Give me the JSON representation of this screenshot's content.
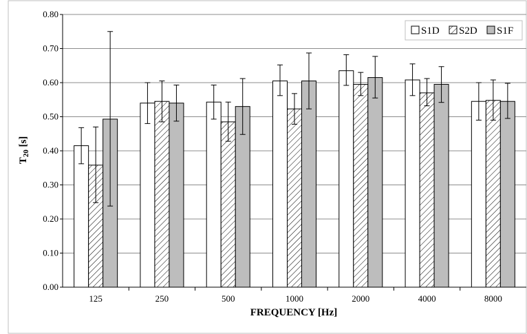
{
  "chart_data": {
    "type": "bar",
    "title": "",
    "xlabel": "FREQUENCY [Hz]",
    "ylabel_main": "T",
    "ylabel_sub": "20",
    "ylabel_unit": " [s]",
    "ylim": [
      0,
      0.8
    ],
    "yticks": [
      "0.00",
      "0.10",
      "0.20",
      "0.30",
      "0.40",
      "0.50",
      "0.60",
      "0.70",
      "0.80"
    ],
    "categories": [
      "125",
      "250",
      "500",
      "1000",
      "2000",
      "4000",
      "8000"
    ],
    "grid": true,
    "legend_position": "top-right",
    "series": [
      {
        "name": "S1D",
        "fill": "white",
        "values": [
          0.415,
          0.54,
          0.543,
          0.605,
          0.635,
          0.608,
          0.545
        ],
        "error_low": [
          0.362,
          0.48,
          0.493,
          0.562,
          0.592,
          0.562,
          0.49
        ],
        "error_high": [
          0.468,
          0.6,
          0.593,
          0.652,
          0.682,
          0.655,
          0.6
        ]
      },
      {
        "name": "S2D",
        "fill": "hatch",
        "values": [
          0.358,
          0.545,
          0.485,
          0.523,
          0.595,
          0.57,
          0.548
        ],
        "error_low": [
          0.248,
          0.485,
          0.428,
          0.478,
          0.562,
          0.532,
          0.49
        ],
        "error_high": [
          0.47,
          0.605,
          0.543,
          0.568,
          0.63,
          0.612,
          0.608
        ]
      },
      {
        "name": "S1F",
        "fill": "#bdbdbd",
        "values": [
          0.493,
          0.54,
          0.53,
          0.605,
          0.615,
          0.595,
          0.545
        ],
        "error_low": [
          0.238,
          0.487,
          0.448,
          0.523,
          0.555,
          0.542,
          0.495
        ],
        "error_high": [
          0.75,
          0.593,
          0.612,
          0.687,
          0.677,
          0.647,
          0.598
        ]
      }
    ]
  }
}
